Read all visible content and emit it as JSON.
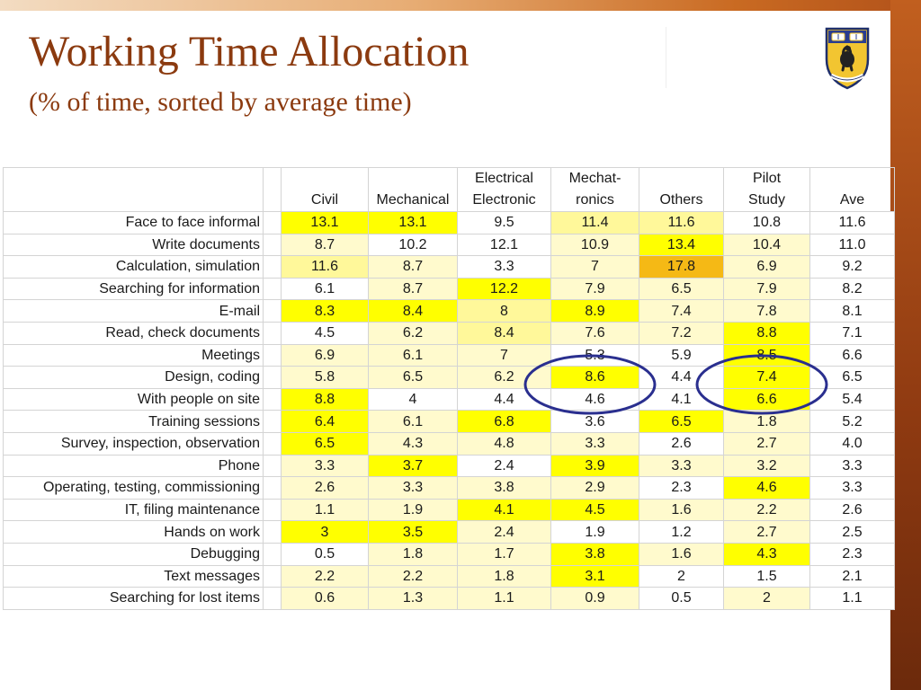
{
  "title": "Working Time Allocation",
  "subtitle": "(% of time, sorted by average time)",
  "colors": {
    "title": "#8b3a0f",
    "highlight_strong": "#ffff00",
    "highlight_medium": "#fff89a",
    "highlight_light": "#fffacd",
    "highlight_max": "#f5b915",
    "circle": "#2a2f8f"
  },
  "logo": {
    "icon": "university-crest-icon"
  },
  "table": {
    "columns": [
      {
        "line1": "",
        "line2": "Civil"
      },
      {
        "line1": "",
        "line2": "Mechanical"
      },
      {
        "line1": "Electrical",
        "line2": "Electronic"
      },
      {
        "line1": "Mechat-",
        "line2": "ronics"
      },
      {
        "line1": "",
        "line2": "Others"
      },
      {
        "line1": "Pilot",
        "line2": "Study"
      },
      {
        "line1": "",
        "line2": "Ave"
      }
    ],
    "rows": [
      {
        "label": "Face to face informal",
        "values": [
          "13.1",
          "13.1",
          "9.5",
          "11.4",
          "11.6",
          "10.8",
          "11.6"
        ]
      },
      {
        "label": "Write documents",
        "values": [
          "8.7",
          "10.2",
          "12.1",
          "10.9",
          "13.4",
          "10.4",
          "11.0"
        ]
      },
      {
        "label": "Calculation, simulation",
        "values": [
          "11.6",
          "8.7",
          "3.3",
          "7",
          "17.8",
          "6.9",
          "9.2"
        ]
      },
      {
        "label": "Searching for information",
        "values": [
          "6.1",
          "8.7",
          "12.2",
          "7.9",
          "6.5",
          "7.9",
          "8.2"
        ]
      },
      {
        "label": "E-mail",
        "values": [
          "8.3",
          "8.4",
          "8",
          "8.9",
          "7.4",
          "7.8",
          "8.1"
        ]
      },
      {
        "label": "Read, check documents",
        "values": [
          "4.5",
          "6.2",
          "8.4",
          "7.6",
          "7.2",
          "8.8",
          "7.1"
        ]
      },
      {
        "label": "Meetings",
        "values": [
          "6.9",
          "6.1",
          "7",
          "5.3",
          "5.9",
          "8.5",
          "6.6"
        ]
      },
      {
        "label": "Design, coding",
        "values": [
          "5.8",
          "6.5",
          "6.2",
          "8.6",
          "4.4",
          "7.4",
          "6.5"
        ]
      },
      {
        "label": "With people on site",
        "values": [
          "8.8",
          "4",
          "4.4",
          "4.6",
          "4.1",
          "6.6",
          "5.4"
        ]
      },
      {
        "label": "Training sessions",
        "values": [
          "6.4",
          "6.1",
          "6.8",
          "3.6",
          "6.5",
          "1.8",
          "5.2"
        ]
      },
      {
        "label": "Survey, inspection, observation",
        "values": [
          "6.5",
          "4.3",
          "4.8",
          "3.3",
          "2.6",
          "2.7",
          "4.0"
        ]
      },
      {
        "label": "Phone",
        "values": [
          "3.3",
          "3.7",
          "2.4",
          "3.9",
          "3.3",
          "3.2",
          "3.3"
        ]
      },
      {
        "label": "Operating, testing, commissioning",
        "values": [
          "2.6",
          "3.3",
          "3.8",
          "2.9",
          "2.3",
          "4.6",
          "3.3"
        ]
      },
      {
        "label": "IT, filing maintenance",
        "values": [
          "1.1",
          "1.9",
          "4.1",
          "4.5",
          "1.6",
          "2.2",
          "2.6"
        ]
      },
      {
        "label": "Hands on work",
        "values": [
          "3",
          "3.5",
          "2.4",
          "1.9",
          "1.2",
          "2.7",
          "2.5"
        ]
      },
      {
        "label": "Debugging",
        "values": [
          "0.5",
          "1.8",
          "1.7",
          "3.8",
          "1.6",
          "4.3",
          "2.3"
        ]
      },
      {
        "label": "Text messages",
        "values": [
          "2.2",
          "2.2",
          "1.8",
          "3.1",
          "2",
          "1.5",
          "2.1"
        ]
      },
      {
        "label": "Searching for lost items",
        "values": [
          "0.6",
          "1.3",
          "1.1",
          "0.9",
          "0.5",
          "2",
          "1.1"
        ]
      }
    ],
    "shading": [
      [
        3,
        3,
        0,
        2,
        2,
        0,
        0
      ],
      [
        1,
        0,
        0,
        1,
        3,
        1,
        0
      ],
      [
        2,
        1,
        0,
        1,
        4,
        1,
        0
      ],
      [
        0,
        1,
        3,
        1,
        1,
        1,
        0
      ],
      [
        3,
        3,
        2,
        3,
        1,
        1,
        0
      ],
      [
        0,
        1,
        2,
        1,
        1,
        3,
        0
      ],
      [
        1,
        1,
        1,
        0,
        0,
        3,
        0
      ],
      [
        1,
        1,
        1,
        3,
        0,
        3,
        0
      ],
      [
        3,
        0,
        0,
        0,
        0,
        3,
        0
      ],
      [
        3,
        1,
        3,
        0,
        3,
        1,
        0
      ],
      [
        3,
        1,
        1,
        1,
        0,
        1,
        0
      ],
      [
        1,
        3,
        0,
        3,
        1,
        1,
        0
      ],
      [
        1,
        1,
        1,
        1,
        0,
        3,
        0
      ],
      [
        1,
        1,
        3,
        3,
        1,
        1,
        0
      ],
      [
        3,
        3,
        1,
        0,
        0,
        1,
        0
      ],
      [
        0,
        1,
        1,
        3,
        1,
        3,
        0
      ],
      [
        1,
        1,
        1,
        3,
        0,
        0,
        0
      ],
      [
        1,
        1,
        1,
        1,
        0,
        1,
        0
      ]
    ]
  }
}
